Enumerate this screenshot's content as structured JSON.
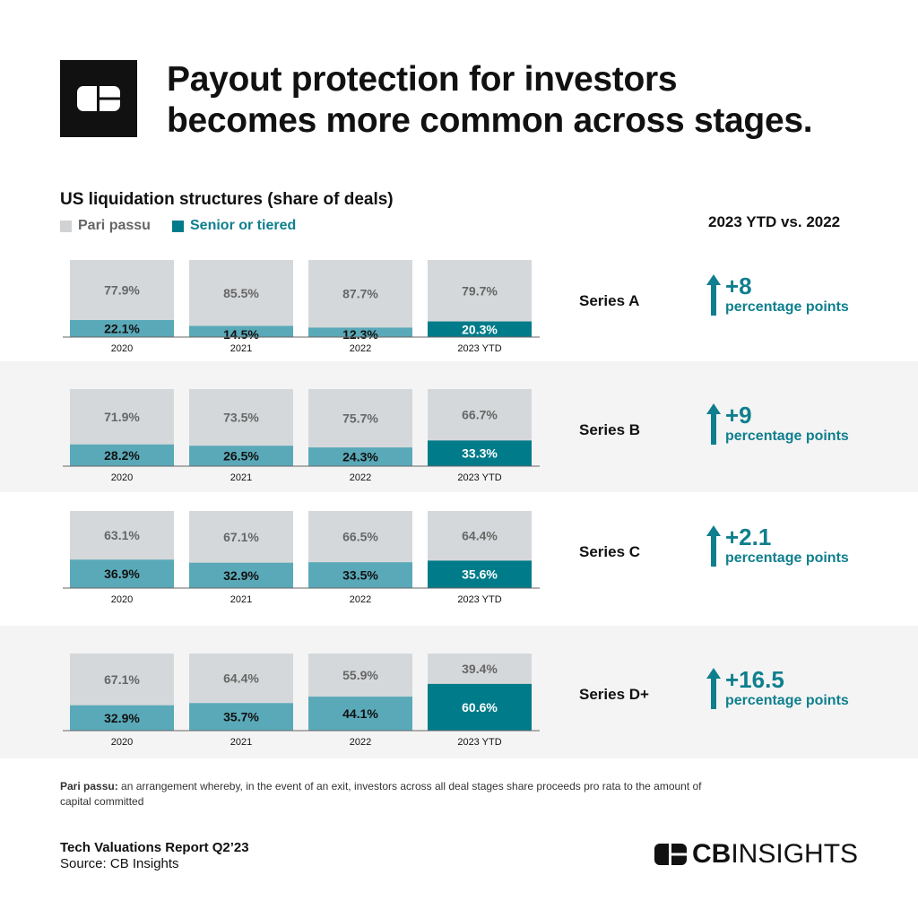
{
  "header": {
    "title_line1": "Payout protection for investors",
    "title_line2": "becomes more common across stages.",
    "logo": "CB"
  },
  "colors": {
    "pari_passu": "#d5d8da",
    "senior": "#5aa9b9",
    "senior_highlight": "#007b8a",
    "delta": "#0f7f8e"
  },
  "comparison_header": "2023 YTD vs. 2022",
  "chart_data": {
    "type": "bar",
    "stacked": true,
    "title": "US liquidation structures (share of deals)",
    "categories": [
      "2020",
      "2021",
      "2022",
      "2023 YTD"
    ],
    "legend": [
      "Pari passu",
      "Senior or tiered"
    ],
    "panels": [
      {
        "name": "Series A",
        "pari_passu": [
          77.9,
          85.5,
          87.7,
          79.7
        ],
        "senior": [
          22.1,
          14.5,
          12.3,
          20.3
        ],
        "delta_value": "+8",
        "delta_unit": "percentage points"
      },
      {
        "name": "Series B",
        "pari_passu": [
          71.9,
          73.5,
          75.7,
          66.7
        ],
        "senior": [
          28.2,
          26.5,
          24.3,
          33.3
        ],
        "delta_value": "+9",
        "delta_unit": "percentage points"
      },
      {
        "name": "Series C",
        "pari_passu": [
          63.1,
          67.1,
          66.5,
          64.4
        ],
        "senior": [
          36.9,
          32.9,
          33.5,
          35.6
        ],
        "delta_value": "+2.1",
        "delta_unit": "percentage points"
      },
      {
        "name": "Series D+",
        "pari_passu": [
          67.1,
          64.4,
          55.9,
          39.4
        ],
        "senior": [
          32.9,
          35.7,
          44.1,
          60.6
        ],
        "delta_value": "+16.5",
        "delta_unit": "percentage points"
      }
    ]
  },
  "footer": {
    "note_term": "Pari passu:",
    "note_text": " an arrangement whereby, in the event of an exit, investors across all deal stages share proceeds pro rata to the amount of capital committed",
    "report": "Tech Valuations Report Q2’23",
    "source": "Source: CB Insights",
    "brand_bold": "CB",
    "brand_light": "INSIGHTS"
  }
}
